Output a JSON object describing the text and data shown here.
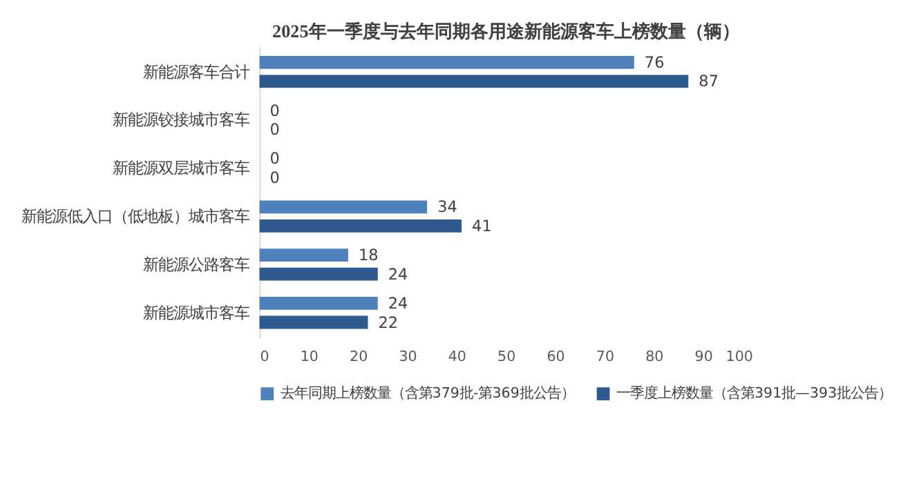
{
  "chart_data": {
    "type": "bar",
    "orientation": "horizontal",
    "title": "2025年一季度与去年同期各用途新能源客车上榜数量（辆）",
    "categories": [
      "新能源客车合计",
      "新能源铰接城市客车",
      "新能源双层城市客车",
      "新能源低入口（低地板）城市客车",
      "新能源公路客车",
      "新能源城市客车"
    ],
    "series": [
      {
        "name": "去年同期上榜数量（含第379批-第369批公告）",
        "color": "#4f81bd",
        "values": [
          76,
          0,
          0,
          34,
          18,
          24
        ]
      },
      {
        "name": "一季度上榜数量（含第391批—393批公告）",
        "color": "#2f5a8f",
        "values": [
          87,
          0,
          0,
          41,
          24,
          22
        ]
      }
    ],
    "xlim": [
      0,
      100
    ],
    "xticks": [
      0,
      10,
      20,
      30,
      40,
      50,
      60,
      70,
      80,
      90,
      100
    ],
    "data_labels": true,
    "grid": false,
    "legend": "bottom"
  }
}
